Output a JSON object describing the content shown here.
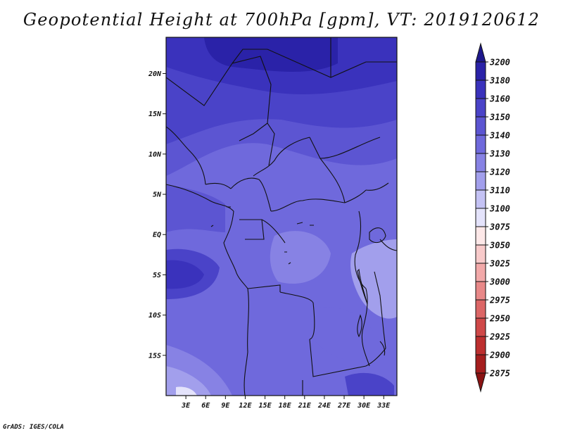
{
  "title": "Geopotential Height at 700hPa [gpm], VT: 2019120612",
  "footer": "GrADS: IGES/COLA",
  "map": {
    "variable": "Geopotential Height",
    "level": "700hPa",
    "units": "gpm",
    "valid_time": "2019120612",
    "lon_range": [
      0,
      35
    ],
    "lat_range": [
      -20,
      24.5
    ],
    "lon_ticks": [
      "3E",
      "6E",
      "9E",
      "12E",
      "15E",
      "18E",
      "21E",
      "24E",
      "27E",
      "30E",
      "33E"
    ],
    "lat_ticks": [
      "20N",
      "15N",
      "10N",
      "5N",
      "EQ",
      "5S",
      "10S",
      "15S"
    ]
  },
  "colorbar": {
    "labels": [
      "3200",
      "3180",
      "3160",
      "3150",
      "3140",
      "3130",
      "3120",
      "3110",
      "3100",
      "3075",
      "3050",
      "3025",
      "3000",
      "2975",
      "2950",
      "2925",
      "2900",
      "2875"
    ],
    "colors": [
      "#1e188c",
      "#2a22a8",
      "#3a32bc",
      "#4a43c8",
      "#5c55d2",
      "#6f69dc",
      "#8782e4",
      "#a29fec",
      "#c4c2f4",
      "#e4e3fb",
      "#fde8e8",
      "#f8caca",
      "#f2a9a9",
      "#e88888",
      "#dc6666",
      "#cf4848",
      "#bd2f2f",
      "#a51e1e",
      "#8a1313"
    ]
  }
}
